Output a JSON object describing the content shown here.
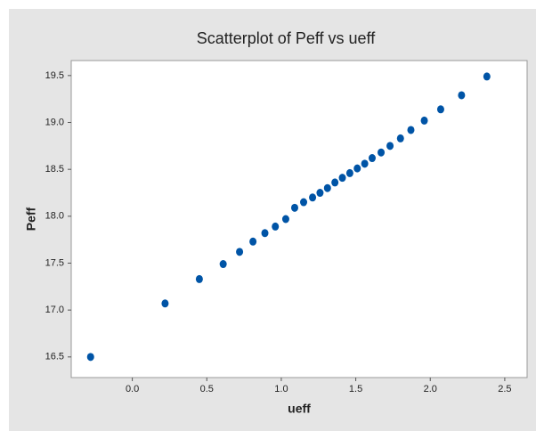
{
  "chart_data": {
    "type": "scatter",
    "title": "Scatterplot of Peff vs ueff",
    "x_label": "ueff",
    "y_label": "Peff",
    "x": [
      -0.28,
      0.22,
      0.45,
      0.61,
      0.72,
      0.81,
      0.89,
      0.96,
      1.03,
      1.09,
      1.15,
      1.21,
      1.26,
      1.31,
      1.36,
      1.41,
      1.46,
      1.51,
      1.56,
      1.61,
      1.67,
      1.73,
      1.8,
      1.87,
      1.96,
      2.07,
      2.21,
      2.38
    ],
    "values": [
      16.5,
      17.07,
      17.33,
      17.49,
      17.62,
      17.73,
      17.82,
      17.89,
      17.97,
      18.09,
      18.15,
      18.2,
      18.25,
      18.3,
      18.36,
      18.41,
      18.46,
      18.51,
      18.56,
      18.62,
      18.68,
      18.75,
      18.83,
      18.92,
      19.02,
      19.14,
      19.29,
      19.49
    ],
    "color": "#0054a6",
    "xlim": [
      -0.41,
      2.65
    ],
    "ylim": [
      16.28,
      19.66
    ],
    "xticks": [
      {
        "value": 0,
        "label": "0.0"
      },
      0.5,
      {
        "value": 1,
        "label": "1.0"
      },
      1.5,
      {
        "value": 2,
        "label": "2.0"
      },
      2.5
    ],
    "yticks": [
      16.5,
      {
        "value": 17,
        "label": "17.0"
      },
      17.5,
      {
        "value": 18,
        "label": "18.0"
      },
      18.5,
      {
        "value": 19,
        "label": "19.0"
      },
      19.5
    ]
  }
}
